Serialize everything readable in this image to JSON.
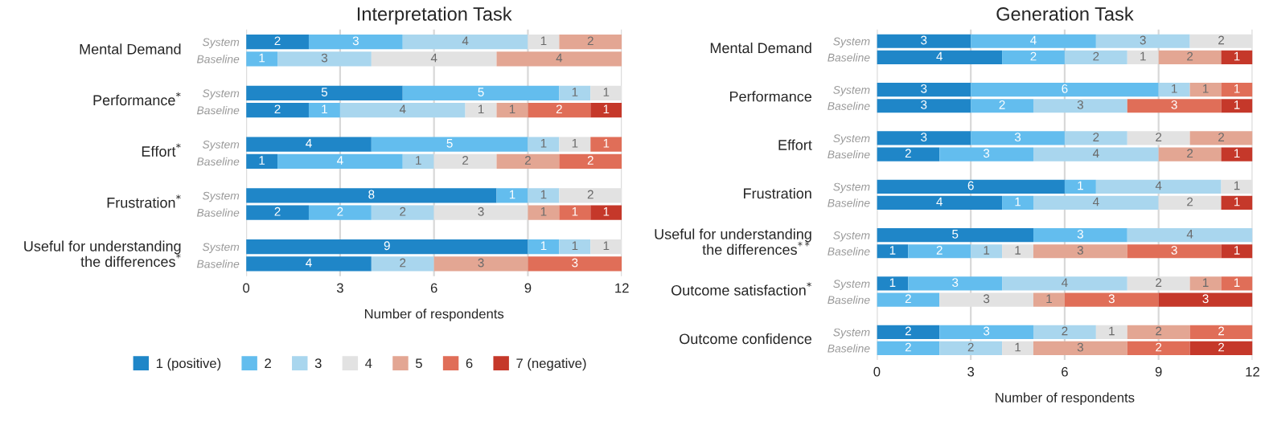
{
  "chart_data": [
    {
      "type": "bar",
      "title": "Interpretation Task",
      "xlabel": "Number of respondents",
      "orientation": "horizontal",
      "stacked": true,
      "data_labels": true,
      "categories": [
        "System",
        "Baseline",
        "System",
        "Baseline",
        "System",
        "Baseline",
        "System",
        "Baseline",
        "System",
        "Baseline"
      ],
      "annotations": [
        "Mental Demand",
        "Performance$^{*}$",
        "Effort$^{*}$",
        "Frustration$^{*}$",
        "Useful for understanding\nthe differences$^{*}$"
      ],
      "xlim": [
        0,
        12
      ],
      "xticks": [
        0,
        3,
        6,
        9,
        12
      ],
      "grid": "x",
      "legend": "bottom",
      "series": [
        {
          "name": "1 (positive)",
          "color": "#1f86c8",
          "values": [
            2,
            null,
            5,
            2,
            4,
            1,
            8,
            2,
            9,
            4
          ]
        },
        {
          "name": "2",
          "color": "#63bdee",
          "values": [
            3,
            1,
            5,
            1,
            5,
            4,
            1,
            2,
            1,
            null
          ]
        },
        {
          "name": "3",
          "color": "#a9d6ee",
          "values": [
            4,
            3,
            1,
            4,
            1,
            1,
            1,
            2,
            1,
            2
          ]
        },
        {
          "name": "4",
          "color": "#e2e2e2",
          "values": [
            1,
            4,
            1,
            1,
            1,
            2,
            2,
            3,
            1,
            null
          ]
        },
        {
          "name": "5",
          "color": "#e3a693",
          "values": [
            2,
            4,
            null,
            1,
            null,
            2,
            null,
            1,
            null,
            3
          ]
        },
        {
          "name": "6",
          "color": "#e06e58",
          "values": [
            null,
            null,
            null,
            2,
            1,
            2,
            null,
            1,
            null,
            3
          ]
        },
        {
          "name": "7 (negative)",
          "color": "#c5382a",
          "values": [
            null,
            null,
            null,
            1,
            null,
            null,
            null,
            1,
            null,
            null
          ]
        }
      ]
    },
    {
      "type": "bar",
      "title": "Generation Task",
      "xlabel": "Number of respondents",
      "orientation": "horizontal",
      "stacked": true,
      "data_labels": true,
      "categories": [
        "System",
        "Baseline",
        "System",
        "Baseline",
        "System",
        "Baseline",
        "System",
        "Baseline",
        "System",
        "Baseline",
        "System",
        "Baseline",
        "System",
        "Baseline"
      ],
      "annotations": [
        "Mental Demand",
        "Performance",
        "Effort",
        "Frustration",
        "Useful for understanding\nthe differences$^{**}$",
        "Outcome satisfaction$^{*}$",
        "Outcome confidence"
      ],
      "xlim": [
        0,
        12
      ],
      "xticks": [
        0,
        3,
        6,
        9,
        12
      ],
      "grid": "x",
      "series": [
        {
          "color": "#1f86c8",
          "values": [
            3,
            4,
            3,
            3,
            3,
            2,
            6,
            4,
            5,
            1,
            1,
            null,
            2,
            null
          ]
        },
        {
          "color": "#63bdee",
          "values": [
            4,
            2,
            6,
            2,
            3,
            3,
            1,
            1,
            3,
            2,
            3,
            2,
            3,
            2
          ]
        },
        {
          "color": "#a9d6ee",
          "values": [
            3,
            2,
            1,
            3,
            2,
            4,
            4,
            4,
            4,
            1,
            4,
            null,
            2,
            2
          ]
        },
        {
          "color": "#e2e2e2",
          "values": [
            2,
            1,
            null,
            null,
            2,
            null,
            1,
            2,
            null,
            1,
            2,
            3,
            1,
            1
          ]
        },
        {
          "color": "#e3a693",
          "values": [
            null,
            2,
            1,
            null,
            2,
            2,
            null,
            null,
            null,
            3,
            1,
            1,
            2,
            3
          ]
        },
        {
          "color": "#e06e58",
          "values": [
            null,
            null,
            1,
            3,
            null,
            null,
            null,
            null,
            null,
            3,
            1,
            3,
            2,
            2
          ]
        },
        {
          "color": "#c5382a",
          "values": [
            null,
            1,
            null,
            1,
            null,
            1,
            null,
            1,
            null,
            1,
            null,
            3,
            null,
            2
          ]
        }
      ]
    }
  ]
}
